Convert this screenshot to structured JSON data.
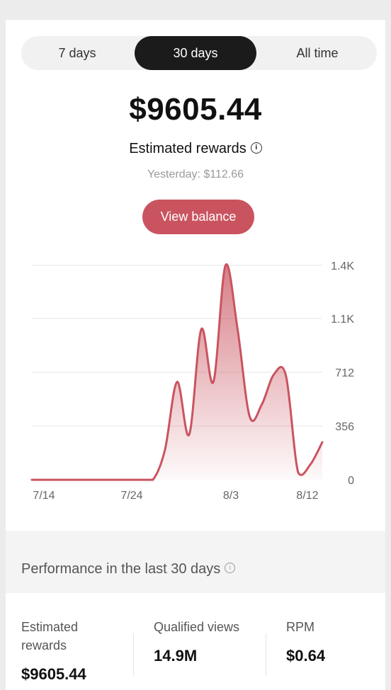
{
  "tabs": [
    {
      "label": "7 days",
      "selected": false
    },
    {
      "label": "30 days",
      "selected": true
    },
    {
      "label": "All time",
      "selected": false
    }
  ],
  "summary": {
    "amount": "$9605.44",
    "label": "Estimated rewards",
    "yesterday": "Yesterday: $112.66",
    "view_balance": "View balance",
    "info_icon": "info-icon"
  },
  "chart_data": {
    "type": "area",
    "x_ticks": [
      "7/14",
      "7/24",
      "8/3",
      "8/12"
    ],
    "y_ticks": [
      "0",
      "356",
      "712",
      "1.1K",
      "1.4K"
    ],
    "ylim": [
      0,
      1424
    ],
    "color": "#c9545f",
    "values": [
      0,
      0,
      0,
      0,
      0,
      0,
      0,
      0,
      0,
      0,
      0,
      200,
      650,
      300,
      1000,
      650,
      1424,
      1000,
      420,
      500,
      700,
      690,
      50,
      100,
      250
    ]
  },
  "performance": {
    "title": "Performance in the last 30 days",
    "stats": [
      {
        "label": "Estimated rewards",
        "value": "$9605.44"
      },
      {
        "label": "Qualified views",
        "value": "14.9M"
      },
      {
        "label": "RPM",
        "value": "$0.64"
      }
    ]
  }
}
